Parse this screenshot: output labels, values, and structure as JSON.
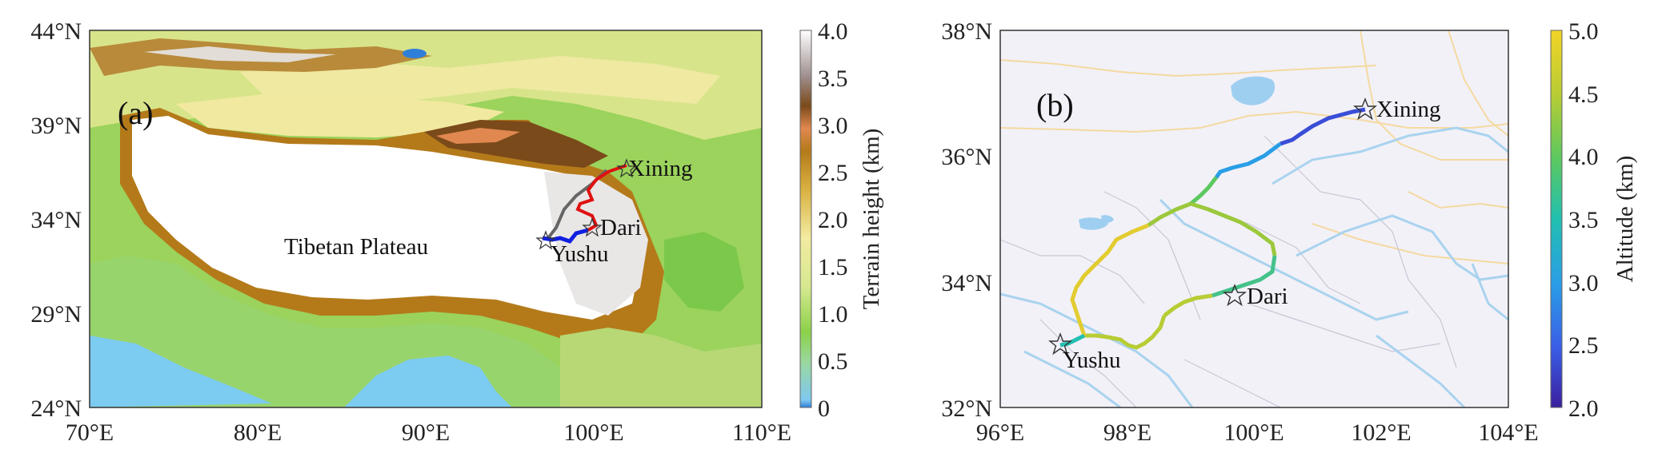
{
  "panel_a": {
    "panel_label": "(a)",
    "region_label": "Tibetan Plateau",
    "x_ticks": [
      "70°E",
      "80°E",
      "90°E",
      "100°E",
      "110°E"
    ],
    "y_ticks": [
      "44°N",
      "39°N",
      "34°N",
      "29°N",
      "24°N"
    ],
    "stations": [
      {
        "name": "Xining",
        "lon": 101.8,
        "lat": 36.6
      },
      {
        "name": "Dari",
        "lon": 99.6,
        "lat": 33.75
      },
      {
        "name": "Yushu",
        "lon": 97.0,
        "lat": 33.0
      }
    ],
    "colorbar": {
      "title": "Terrain height (km)",
      "ticks": [
        "4.0",
        "3.5",
        "3.0",
        "2.5",
        "2.0",
        "1.5",
        "1.0",
        "0.5",
        "0"
      ],
      "range": [
        0,
        4.0
      ],
      "colors": [
        "#2f7fd9",
        "#7fc8f0",
        "#b6e07a",
        "#8cd14a",
        "#d9e890",
        "#f3eba0",
        "#d8b040",
        "#b47a1a",
        "#7a4a1a",
        "#e08850",
        "#a08070",
        "#d8d0d0",
        "#ffffff"
      ]
    }
  },
  "panel_b": {
    "panel_label": "(b)",
    "x_ticks": [
      "96°E",
      "98°E",
      "100°E",
      "102°E",
      "104°E"
    ],
    "y_ticks": [
      "38°N",
      "36°N",
      "34°N",
      "32°N"
    ],
    "stations": [
      {
        "name": "Xining",
        "lon": 101.78,
        "lat": 36.65
      },
      {
        "name": "Dari",
        "lon": 99.65,
        "lat": 33.75
      },
      {
        "name": "Yushu",
        "lon": 96.97,
        "lat": 33.0
      }
    ],
    "colorbar": {
      "title": "Altitude (km)",
      "ticks": [
        "5.0",
        "4.5",
        "4.0",
        "3.5",
        "3.0",
        "2.5",
        "2.0"
      ],
      "range": [
        2.0,
        5.0
      ],
      "colors": [
        "#3b1f9e",
        "#3a5ee6",
        "#2a9ee6",
        "#22bfb0",
        "#5cc860",
        "#b8cc34",
        "#f2d428"
      ]
    }
  }
}
